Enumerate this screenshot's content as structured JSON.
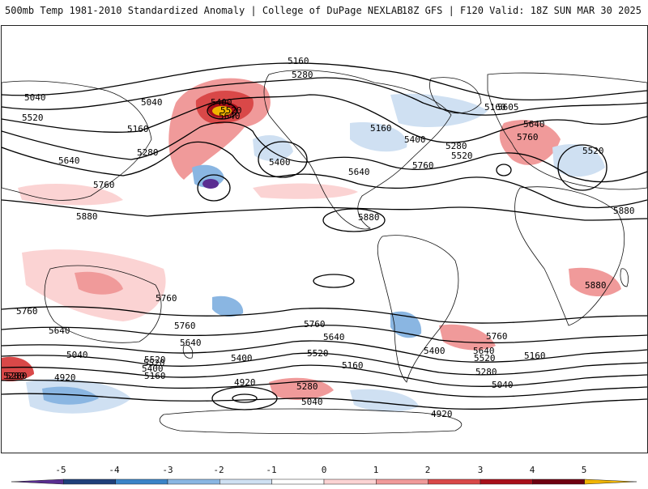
{
  "header": {
    "title_left": "500mb Temp 1981-2010 Standardized Anomaly | College of DuPage NEXLAB",
    "title_right": "18Z GFS | F120 Valid: 18Z SUN MAR 30 2025"
  },
  "contour_labels": [
    "5160",
    "5280",
    "5040",
    "5040",
    "5520",
    "5400",
    "5280",
    "5160",
    "5640",
    "5520",
    "5640",
    "5760",
    "5880",
    "5160",
    "5400",
    "5640",
    "5760",
    "5280",
    "5520",
    "5400",
    "5160",
    "5605",
    "5640",
    "5760",
    "5520",
    "5880",
    "5880",
    "5880",
    "5760",
    "5640",
    "5760",
    "5760",
    "5640",
    "5520",
    "5400",
    "5040",
    "5520",
    "5400",
    "5280",
    "5160",
    "4920",
    "4920",
    "5040",
    "5280",
    "5160",
    "5520",
    "5400",
    "5640",
    "5760",
    "5160",
    "5280",
    "5040",
    "4920",
    "5280",
    "5760",
    "5640",
    "5520"
  ],
  "colorbar": {
    "ticks": [
      "-5",
      "-4",
      "-3",
      "-2",
      "-1",
      "0",
      "1",
      "2",
      "3",
      "4",
      "5"
    ],
    "colors": [
      "#5a2d91",
      "#1f3f7a",
      "#3a84c8",
      "#8ab6e2",
      "#cfe0f2",
      "#ffffff",
      "#fbd3d3",
      "#f09a9a",
      "#d94848",
      "#a80f1a",
      "#6e0010",
      "#f0b400"
    ]
  },
  "colors": {
    "land_outline": "#111111",
    "contour": "#000000"
  }
}
